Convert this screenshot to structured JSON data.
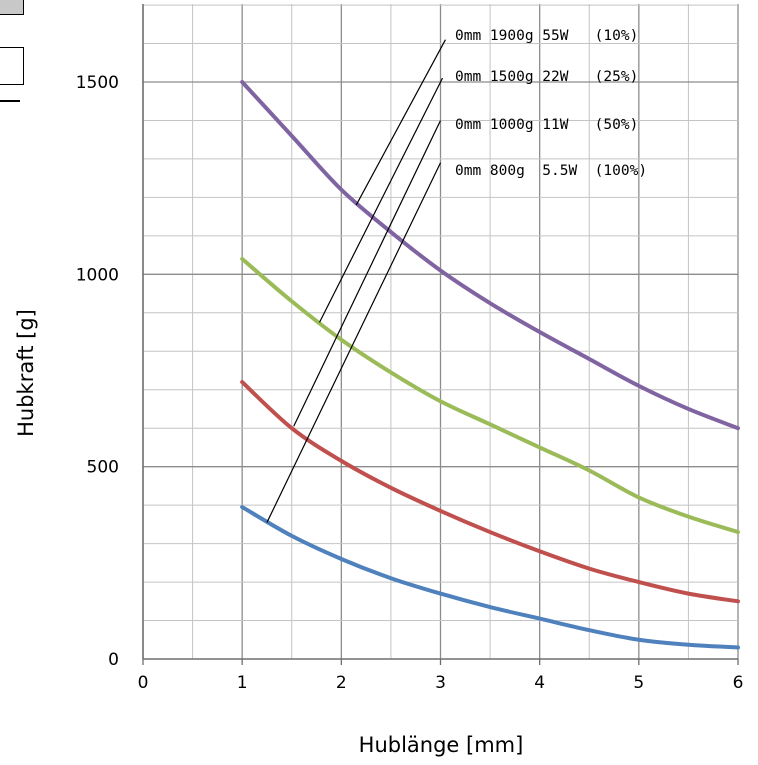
{
  "chart_data": {
    "type": "line",
    "xlabel": "Hublänge [mm]",
    "ylabel": "Hubkraft [g]",
    "xlim": [
      0,
      6
    ],
    "ylim": [
      0,
      1500
    ],
    "x_ticks": [
      "0",
      "1",
      "2",
      "3",
      "4",
      "5",
      "6"
    ],
    "y_ticks": [
      "0",
      "500",
      "1000",
      "1500"
    ],
    "grid": true,
    "series": [
      {
        "color": "#8064a2",
        "x": [
          1,
          1.5,
          2,
          2.5,
          3,
          3.5,
          4,
          4.5,
          5,
          5.5,
          6
        ],
        "y": [
          1500,
          1360,
          1220,
          1110,
          1010,
          925,
          850,
          780,
          710,
          650,
          600
        ]
      },
      {
        "color": "#9bbb59",
        "x": [
          1,
          1.5,
          2,
          2.5,
          3,
          3.5,
          4,
          4.5,
          5,
          5.5,
          6
        ],
        "y": [
          1040,
          930,
          830,
          745,
          670,
          610,
          550,
          490,
          420,
          370,
          330
        ]
      },
      {
        "color": "#c0504d",
        "x": [
          1,
          1.5,
          2,
          2.5,
          3,
          3.5,
          4,
          4.5,
          5,
          5.5,
          6
        ],
        "y": [
          720,
          600,
          515,
          445,
          385,
          330,
          280,
          235,
          200,
          170,
          150
        ]
      },
      {
        "color": "#4f81bd",
        "x": [
          1,
          1.5,
          2,
          2.5,
          3,
          3.5,
          4,
          4.5,
          5,
          5.5,
          6
        ],
        "y": [
          395,
          320,
          260,
          210,
          170,
          135,
          105,
          75,
          50,
          37,
          30
        ]
      }
    ],
    "annotations": [
      {
        "text": "0mm 1900g 55W   (10%)",
        "points": [
          [
            2.15,
            1180
          ],
          [
            3.05,
            1610
          ]
        ]
      },
      {
        "text": "0mm 1500g 22W   (25%)",
        "points": [
          [
            1.78,
            875
          ],
          [
            3.02,
            1510
          ]
        ]
      },
      {
        "text": "0mm 1000g 11W   (50%)",
        "points": [
          [
            1.52,
            605
          ],
          [
            3.0,
            1400
          ]
        ]
      },
      {
        "text": "0mm 800g  5.5W  (100%)",
        "points": [
          [
            1.25,
            355
          ],
          [
            3.0,
            1290
          ]
        ]
      }
    ]
  }
}
